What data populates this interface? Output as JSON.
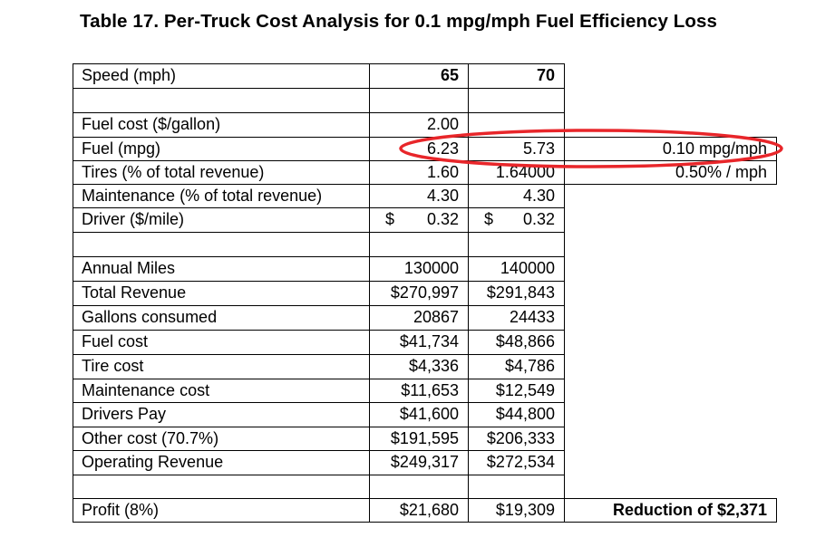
{
  "title": "Table 17.  Per-Truck Cost Analysis for 0.1 mpg/mph Fuel Efficiency Loss",
  "header": {
    "label": "Speed (mph)",
    "col1": "65",
    "col2": "70"
  },
  "rows": [
    {
      "label": "Fuel cost ($/gallon)",
      "v1": "2.00",
      "v2": ""
    },
    {
      "label": "Fuel (mpg)",
      "v1": "6.23",
      "v2": "5.73",
      "side": "0.10 mpg/mph"
    },
    {
      "label": "Tires (% of total revenue)",
      "v1": "1.60",
      "v2": "1.64000",
      "side": "0.50% / mph"
    },
    {
      "label": "Maintenance (% of total revenue)",
      "v1": "4.30",
      "v2": "4.30"
    },
    {
      "label": "Driver ($/mile)",
      "v1": "0.32",
      "v2": "0.32",
      "currency": "$"
    },
    {
      "label": "Annual Miles",
      "v1": "130000",
      "v2": "140000"
    },
    {
      "label": "Total Revenue",
      "v1": "$270,997",
      "v2": "$291,843"
    },
    {
      "label": "Gallons consumed",
      "v1": "20867",
      "v2": "24433"
    },
    {
      "label": "Fuel cost",
      "v1": "$41,734",
      "v2": "$48,866"
    },
    {
      "label": "Tire cost",
      "v1": "$4,336",
      "v2": "$4,786"
    },
    {
      "label": "Maintenance cost",
      "v1": "$11,653",
      "v2": "$12,549"
    },
    {
      "label": "Drivers Pay",
      "v1": "$41,600",
      "v2": "$44,800"
    },
    {
      "label": "Other cost (70.7%)",
      "v1": "$191,595",
      "v2": "$206,333"
    },
    {
      "label": "Operating Revenue",
      "v1": "$249,317",
      "v2": "$272,534"
    },
    {
      "label": "Profit (8%)",
      "v1": "$21,680",
      "v2": "$19,309",
      "side": "Reduction of $2,371"
    }
  ],
  "annotation_color": "#e8262a"
}
